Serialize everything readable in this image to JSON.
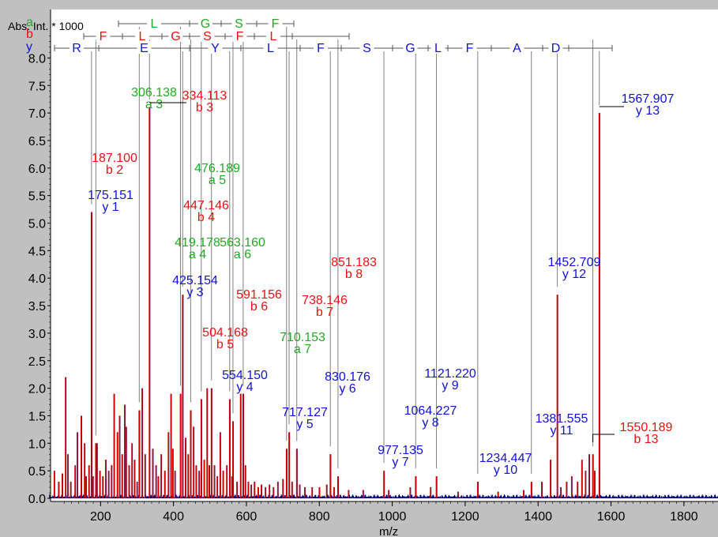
{
  "colors": {
    "a": "#22aa22",
    "b": "#ee1111",
    "y": "#1111dd",
    "spectrum_red": "#cc0000",
    "spectrum_blue": "#000080",
    "guide": "#808080",
    "frame_bg": "#c0c0c0",
    "plot_bg": "#ffffff"
  },
  "chart_data": {
    "type": "line",
    "title": "",
    "ylabel": "Abs. Int. * 1000",
    "xlabel": "m/z",
    "xlim": [
      50,
      1910
    ],
    "ylim": [
      0,
      8.5
    ],
    "x_ticks": [
      200,
      400,
      600,
      800,
      1000,
      1200,
      1400,
      1600,
      1800
    ],
    "x_tick_labels": [
      "200",
      "400",
      "600",
      "800",
      "1000",
      "1200",
      "1400",
      "1600",
      "1800"
    ],
    "y_ticks": [
      0,
      0.5,
      1.0,
      1.5,
      2.0,
      2.5,
      3.0,
      3.5,
      4.0,
      4.5,
      5.0,
      5.5,
      6.0,
      6.5,
      7.0,
      7.5,
      8.0
    ],
    "y_tick_labels": [
      "0.0",
      "0.5",
      "1.0",
      "1.5",
      "2.0",
      "2.5",
      "3.0",
      "3.5",
      "4.0",
      "4.5",
      "5.0",
      "5.5",
      "6.0",
      "6.5",
      "7.0",
      "7.5",
      "8.0"
    ],
    "series_letters": [
      "a",
      "b",
      "y"
    ],
    "sequence_rows": {
      "a": [
        "L",
        "G",
        "S",
        "F"
      ],
      "b": [
        "F",
        "L",
        "G",
        "S",
        "F",
        "L"
      ],
      "y": [
        "R",
        "E",
        "Y",
        "L",
        "F",
        "S",
        "G",
        "L",
        "F",
        "A",
        "D"
      ]
    },
    "annotated_peaks": [
      {
        "ion": "y",
        "mz": "175.151",
        "label": "y 1",
        "x": 175.151,
        "height": 5.2
      },
      {
        "ion": "b",
        "mz": "187.100",
        "label": "b 2",
        "x": 187.1,
        "height": 1.0
      },
      {
        "ion": "a",
        "mz": "306.138",
        "label": "a 3",
        "x": 306.138,
        "height": 1.6
      },
      {
        "ion": "b",
        "mz": "334.113",
        "label": "b 3",
        "x": 334.113,
        "height": 7.1
      },
      {
        "ion": "a",
        "mz": "419.178",
        "label": "a 4",
        "x": 419.178,
        "height": 1.9
      },
      {
        "ion": "y",
        "mz": "425.154",
        "label": "y 3",
        "x": 425.154,
        "height": 3.7
      },
      {
        "ion": "b",
        "mz": "447.146",
        "label": "b 4",
        "x": 447.146,
        "height": 1.6
      },
      {
        "ion": "a",
        "mz": "476.189",
        "label": "a 5",
        "x": 476.189,
        "height": 1.8
      },
      {
        "ion": "b",
        "mz": "504.168",
        "label": "b 5",
        "x": 504.168,
        "height": 2.0
      },
      {
        "ion": "y",
        "mz": "554.150",
        "label": "y 4",
        "x": 554.15,
        "height": 1.8
      },
      {
        "ion": "a",
        "mz": "563.160",
        "label": "a 6",
        "x": 563.16,
        "height": 1.4
      },
      {
        "ion": "b",
        "mz": "591.156",
        "label": "b 6",
        "x": 591.156,
        "height": 1.9
      },
      {
        "ion": "a",
        "mz": "710.153",
        "label": "a 7",
        "x": 710.153,
        "height": 0.9
      },
      {
        "ion": "y",
        "mz": "717.127",
        "label": "y 5",
        "x": 717.127,
        "height": 1.2
      },
      {
        "ion": "b",
        "mz": "738.146",
        "label": "b 7",
        "x": 738.146,
        "height": 0.9
      },
      {
        "ion": "y",
        "mz": "830.176",
        "label": "y 6",
        "x": 830.176,
        "height": 0.8
      },
      {
        "ion": "b",
        "mz": "851.183",
        "label": "b 8",
        "x": 851.183,
        "height": 0.4
      },
      {
        "ion": "y",
        "mz": "977.135",
        "label": "y 7",
        "x": 977.135,
        "height": 0.5
      },
      {
        "ion": "y",
        "mz": "1064.227",
        "label": "y 8",
        "x": 1064.227,
        "height": 0.4
      },
      {
        "ion": "y",
        "mz": "1121.220",
        "label": "y 9",
        "x": 1121.22,
        "height": 0.4
      },
      {
        "ion": "y",
        "mz": "1234.447",
        "label": "y 10",
        "x": 1234.447,
        "height": 0.3
      },
      {
        "ion": "y",
        "mz": "1381.555",
        "label": "y 11",
        "x": 1381.555,
        "height": 0.3
      },
      {
        "ion": "y",
        "mz": "1452.709",
        "label": "y 12",
        "x": 1452.709,
        "height": 3.7
      },
      {
        "ion": "b",
        "mz": "1550.189",
        "label": "b 13",
        "x": 1550.189,
        "height": 0.8
      },
      {
        "ion": "y",
        "mz": "1567.907",
        "label": "y 13",
        "x": 1567.907,
        "height": 7.0
      }
    ],
    "other_peaks": [
      {
        "x": 73,
        "y": 0.5
      },
      {
        "x": 85,
        "y": 0.3
      },
      {
        "x": 95,
        "y": 0.45
      },
      {
        "x": 104,
        "y": 2.2
      },
      {
        "x": 110,
        "y": 0.8
      },
      {
        "x": 118,
        "y": 0.3
      },
      {
        "x": 130,
        "y": 0.6
      },
      {
        "x": 136,
        "y": 1.2
      },
      {
        "x": 147,
        "y": 1.5
      },
      {
        "x": 156,
        "y": 1.0
      },
      {
        "x": 160,
        "y": 0.4
      },
      {
        "x": 168,
        "y": 0.6
      },
      {
        "x": 179,
        "y": 0.4
      },
      {
        "x": 190,
        "y": 1.0
      },
      {
        "x": 198,
        "y": 0.5
      },
      {
        "x": 206,
        "y": 0.4
      },
      {
        "x": 214,
        "y": 0.7
      },
      {
        "x": 222,
        "y": 0.5
      },
      {
        "x": 230,
        "y": 0.6
      },
      {
        "x": 237,
        "y": 1.9
      },
      {
        "x": 246,
        "y": 1.2
      },
      {
        "x": 252,
        "y": 1.5
      },
      {
        "x": 259,
        "y": 0.8
      },
      {
        "x": 266,
        "y": 1.7
      },
      {
        "x": 270,
        "y": 1.3
      },
      {
        "x": 278,
        "y": 0.6
      },
      {
        "x": 286,
        "y": 1.0
      },
      {
        "x": 293,
        "y": 0.7
      },
      {
        "x": 300,
        "y": 0.3
      },
      {
        "x": 314,
        "y": 2.0
      },
      {
        "x": 322,
        "y": 0.8
      },
      {
        "x": 343,
        "y": 0.9
      },
      {
        "x": 352,
        "y": 0.6
      },
      {
        "x": 358,
        "y": 0.4
      },
      {
        "x": 366,
        "y": 0.8
      },
      {
        "x": 376,
        "y": 0.5
      },
      {
        "x": 386,
        "y": 1.2
      },
      {
        "x": 393,
        "y": 1.9
      },
      {
        "x": 398,
        "y": 0.9
      },
      {
        "x": 404,
        "y": 0.5
      },
      {
        "x": 433,
        "y": 1.1
      },
      {
        "x": 440,
        "y": 0.8
      },
      {
        "x": 455,
        "y": 1.3
      },
      {
        "x": 462,
        "y": 0.6
      },
      {
        "x": 470,
        "y": 0.5
      },
      {
        "x": 484,
        "y": 0.7
      },
      {
        "x": 492,
        "y": 2.0
      },
      {
        "x": 498,
        "y": 0.6
      },
      {
        "x": 512,
        "y": 0.6
      },
      {
        "x": 520,
        "y": 0.4
      },
      {
        "x": 528,
        "y": 1.2
      },
      {
        "x": 536,
        "y": 0.5
      },
      {
        "x": 546,
        "y": 0.6
      },
      {
        "x": 560,
        "y": 0.4
      },
      {
        "x": 574,
        "y": 0.3
      },
      {
        "x": 584,
        "y": 1.9
      },
      {
        "x": 597,
        "y": 0.6
      },
      {
        "x": 605,
        "y": 0.3
      },
      {
        "x": 613,
        "y": 0.25
      },
      {
        "x": 622,
        "y": 0.3
      },
      {
        "x": 632,
        "y": 0.2
      },
      {
        "x": 641,
        "y": 0.25
      },
      {
        "x": 652,
        "y": 0.2
      },
      {
        "x": 663,
        "y": 0.25
      },
      {
        "x": 674,
        "y": 0.2
      },
      {
        "x": 686,
        "y": 0.3
      },
      {
        "x": 700,
        "y": 0.35
      },
      {
        "x": 725,
        "y": 0.3
      },
      {
        "x": 746,
        "y": 0.25
      },
      {
        "x": 760,
        "y": 0.2
      },
      {
        "x": 780,
        "y": 0.2
      },
      {
        "x": 800,
        "y": 0.2
      },
      {
        "x": 820,
        "y": 0.25
      },
      {
        "x": 840,
        "y": 0.2
      },
      {
        "x": 880,
        "y": 0.15
      },
      {
        "x": 920,
        "y": 0.15
      },
      {
        "x": 990,
        "y": 0.15
      },
      {
        "x": 1049,
        "y": 0.2
      },
      {
        "x": 1105,
        "y": 0.2
      },
      {
        "x": 1180,
        "y": 0.12
      },
      {
        "x": 1290,
        "y": 0.12
      },
      {
        "x": 1360,
        "y": 0.15
      },
      {
        "x": 1410,
        "y": 0.3
      },
      {
        "x": 1434,
        "y": 0.7
      },
      {
        "x": 1462,
        "y": 0.2
      },
      {
        "x": 1478,
        "y": 0.3
      },
      {
        "x": 1492,
        "y": 0.4
      },
      {
        "x": 1508,
        "y": 0.3
      },
      {
        "x": 1520,
        "y": 0.7
      },
      {
        "x": 1530,
        "y": 0.5
      },
      {
        "x": 1540,
        "y": 0.8
      },
      {
        "x": 1555,
        "y": 0.5
      }
    ]
  }
}
